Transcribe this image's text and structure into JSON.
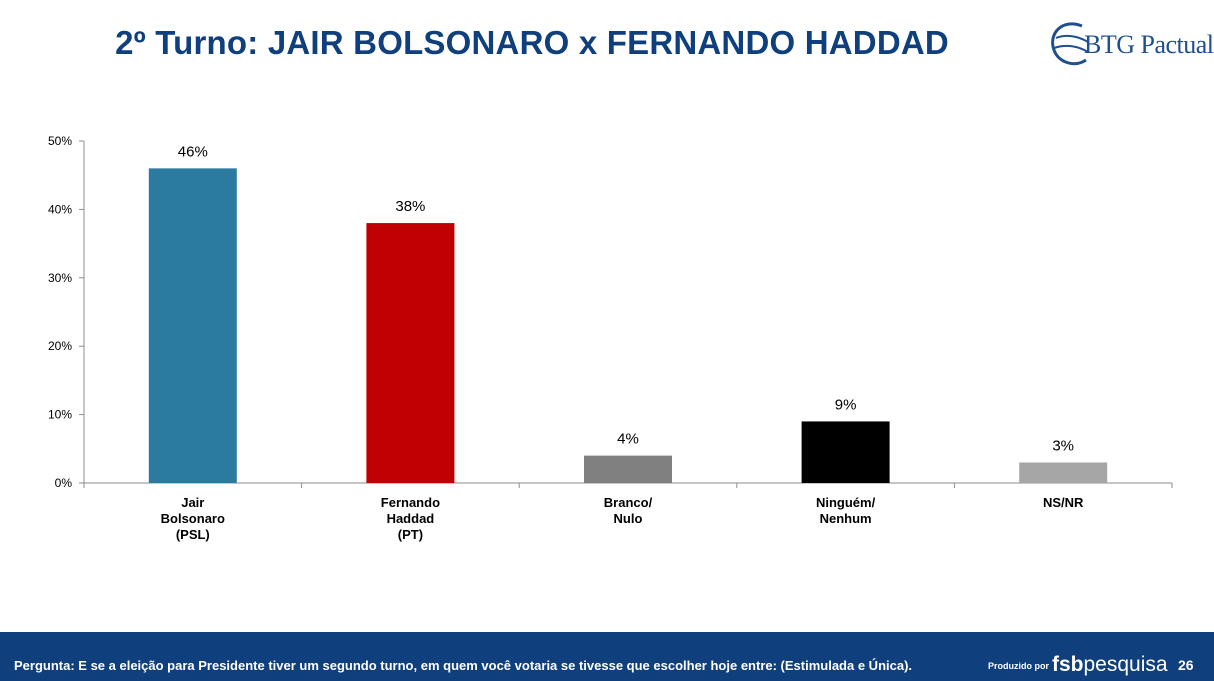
{
  "header": {
    "title": "2º Turno: JAIR BOLSONARO x FERNANDO HADDAD",
    "logo_text": "BTG Pactual"
  },
  "chart_data": {
    "type": "bar",
    "categories": [
      [
        "Jair",
        "Bolsonaro",
        "(PSL)"
      ],
      [
        "Fernando",
        "Haddad",
        "(PT)"
      ],
      [
        "Branco/",
        "Nulo"
      ],
      [
        "Ninguém/",
        "Nenhum"
      ],
      [
        "NS/NR"
      ]
    ],
    "values": [
      46,
      38,
      4,
      9,
      3
    ],
    "data_labels": [
      "46%",
      "38%",
      "4%",
      "9%",
      "3%"
    ],
    "bar_colors": [
      "#2b7ba0",
      "#c00000",
      "#808080",
      "#000000",
      "#a6a6a6"
    ],
    "ylim": [
      0,
      50
    ],
    "yticks": [
      0,
      10,
      20,
      30,
      40,
      50
    ],
    "ytick_labels": [
      "0%",
      "10%",
      "20%",
      "30%",
      "40%",
      "50%"
    ],
    "grid": false,
    "legend": "none",
    "title": "",
    "xlabel": "",
    "ylabel": ""
  },
  "footer": {
    "question": "Pergunta:  E se a eleição para Presidente tiver um segundo turno, em quem você votaria se tivesse que escolher hoje entre:  (Estimulada e Única).",
    "produced_by": "Produzido por",
    "brand_bold": "fsb",
    "brand_rest": "pesquisa",
    "page_number": "26"
  },
  "colors": {
    "title": "#0f3f7c",
    "footer_bg": "#0f3f7c"
  }
}
